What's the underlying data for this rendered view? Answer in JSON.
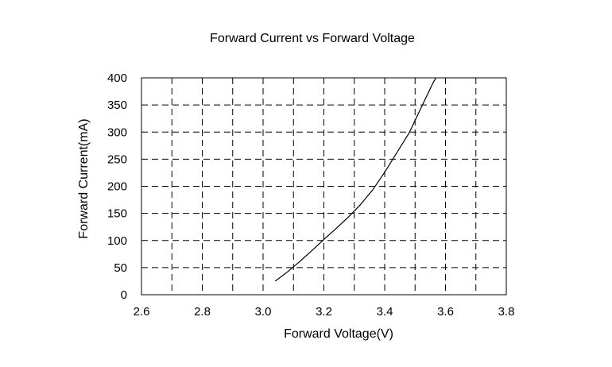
{
  "chart_data": {
    "type": "line",
    "title": "Forward Current vs Forward Voltage",
    "xlabel": "Forward Voltage(V)",
    "ylabel": "Forward Current(mA)",
    "xlim": [
      2.6,
      3.8
    ],
    "ylim": [
      0,
      400
    ],
    "x_ticks": [
      "2.6",
      "2.8",
      "3.0",
      "3.2",
      "3.4",
      "3.6",
      "3.8"
    ],
    "x_tick_values": [
      2.6,
      2.8,
      3.0,
      3.2,
      3.4,
      3.6,
      3.8
    ],
    "y_ticks": [
      "0",
      "50",
      "100",
      "150",
      "200",
      "250",
      "300",
      "350",
      "400"
    ],
    "y_tick_values": [
      0,
      50,
      100,
      150,
      200,
      250,
      300,
      350,
      400
    ],
    "x_grid": [
      2.7,
      2.8,
      2.9,
      3.0,
      3.1,
      3.2,
      3.3,
      3.4,
      3.5,
      3.6,
      3.7
    ],
    "y_grid": [
      50,
      100,
      150,
      200,
      250,
      300,
      350
    ],
    "grid": true,
    "series": [
      {
        "x": [
          3.04,
          3.08,
          3.12,
          3.16,
          3.2,
          3.24,
          3.28,
          3.32,
          3.36,
          3.4,
          3.44,
          3.48,
          3.52,
          3.56,
          3.58
        ],
        "y": [
          25,
          42,
          61,
          81,
          102,
          122,
          143,
          166,
          193,
          226,
          262,
          298,
          345,
          392,
          410
        ]
      }
    ],
    "line_color": "#000000"
  }
}
